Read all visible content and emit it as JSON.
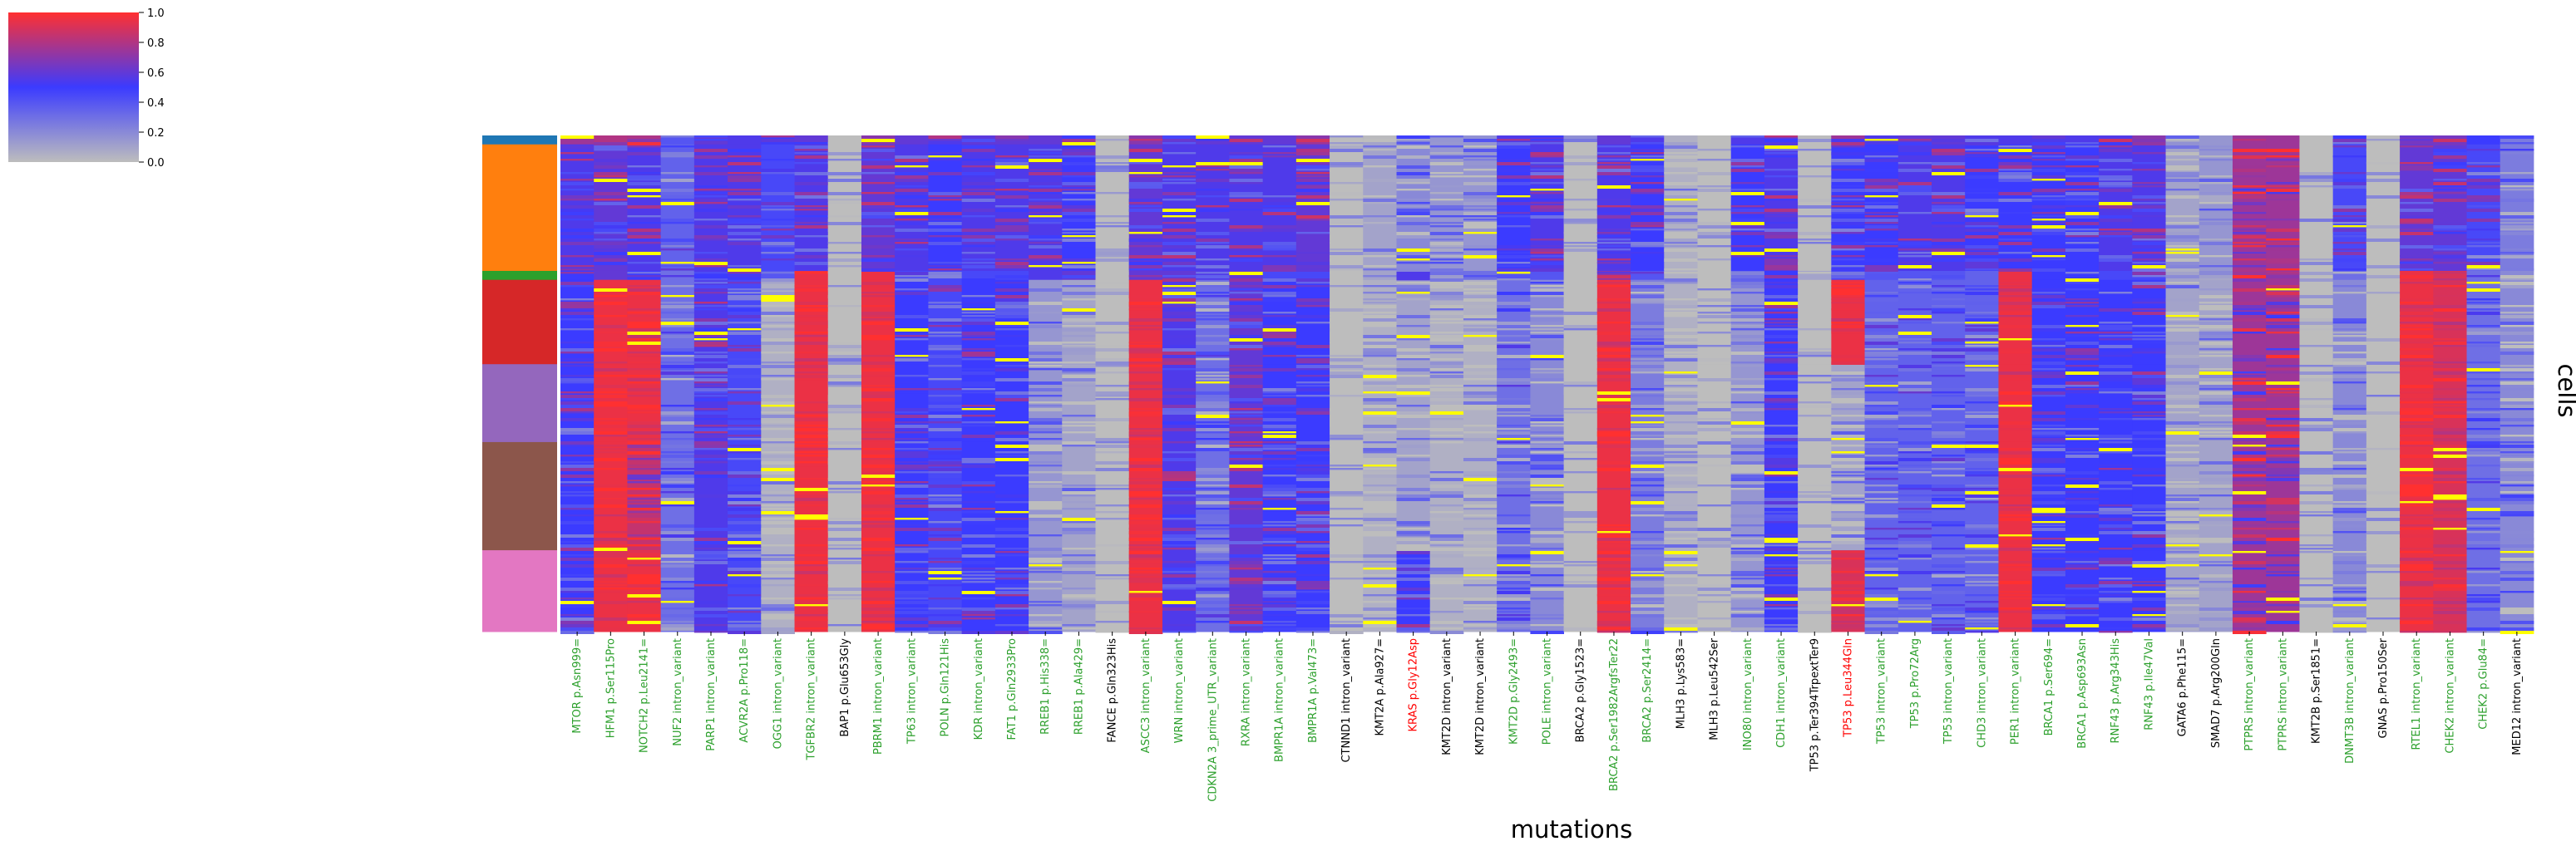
{
  "chart_data": {
    "type": "heatmap",
    "xlabel": "mutations",
    "ylabel": "cells",
    "colorbar": {
      "ticks": [
        "0.0",
        "0.2",
        "0.4",
        "0.6",
        "0.8",
        "1.0"
      ],
      "range": [
        0,
        1
      ],
      "colors": [
        "#bdbdbd",
        "#3b3bff",
        "#ff3030"
      ]
    },
    "special_value_color": "#ffff00",
    "row_groups": [
      {
        "color": "#1f77b4",
        "fraction": 0.018
      },
      {
        "color": "#ff7f0e",
        "fraction": 0.255
      },
      {
        "color": "#2ca02c",
        "fraction": 0.018
      },
      {
        "color": "#d62728",
        "fraction": 0.17
      },
      {
        "color": "#9467bd",
        "fraction": 0.157
      },
      {
        "color": "#8c564b",
        "fraction": 0.218
      },
      {
        "color": "#e377c2",
        "fraction": 0.164
      }
    ],
    "columns": [
      {
        "label": "MTOR p.Asn999=",
        "color": "#2ca02c",
        "profile": [
          0.75,
          0.55,
          0.5,
          0.5,
          0.5,
          0.5,
          0.5
        ]
      },
      {
        "label": "HFM1 p.Ser115Pro",
        "color": "#2ca02c",
        "profile": [
          0.8,
          0.6,
          0.6,
          0.95,
          0.95,
          0.95,
          0.95
        ]
      },
      {
        "label": "NOTCH2 p.Leu2141=",
        "color": "#2ca02c",
        "profile": [
          0.7,
          0.55,
          0.5,
          0.95,
          0.95,
          0.85,
          0.95
        ]
      },
      {
        "label": "NUF2 intron_variant",
        "color": "#2ca02c",
        "profile": [
          0.4,
          0.35,
          0.3,
          0.3,
          0.3,
          0.3,
          0.3
        ]
      },
      {
        "label": "PARP1 intron_variant",
        "color": "#2ca02c",
        "profile": [
          0.6,
          0.55,
          0.5,
          0.55,
          0.55,
          0.55,
          0.55
        ]
      },
      {
        "label": "ACVR2A p.Pro118=",
        "color": "#2ca02c",
        "profile": [
          0.55,
          0.55,
          0.5,
          0.45,
          0.45,
          0.45,
          0.45
        ]
      },
      {
        "label": "OGG1 intron_variant",
        "color": "#2ca02c",
        "profile": [
          0.5,
          0.45,
          0.4,
          0.05,
          0.05,
          0.05,
          0.05
        ]
      },
      {
        "label": "TGFBR2 intron_variant",
        "color": "#2ca02c",
        "profile": [
          0.6,
          0.55,
          0.95,
          0.95,
          0.95,
          0.95,
          0.95
        ]
      },
      {
        "label": "BAP1 p.Glu653Gly",
        "color": "#000000",
        "profile": [
          0.0,
          0.0,
          0.0,
          0.0,
          0.0,
          0.0,
          0.0
        ]
      },
      {
        "label": "PBRM1 intron_variant",
        "color": "#2ca02c",
        "profile": [
          0.7,
          0.6,
          0.95,
          0.95,
          0.95,
          0.95,
          0.95
        ]
      },
      {
        "label": "TP63 intron_variant",
        "color": "#2ca02c",
        "profile": [
          0.6,
          0.55,
          0.45,
          0.5,
          0.5,
          0.5,
          0.5
        ]
      },
      {
        "label": "POLN p.Gln121His",
        "color": "#2ca02c",
        "profile": [
          0.55,
          0.5,
          0.45,
          0.45,
          0.45,
          0.45,
          0.45
        ]
      },
      {
        "label": "KDR intron_variant",
        "color": "#2ca02c",
        "profile": [
          0.6,
          0.55,
          0.45,
          0.5,
          0.5,
          0.5,
          0.5
        ]
      },
      {
        "label": "FAT1 p.Gln2933Pro",
        "color": "#2ca02c",
        "profile": [
          0.6,
          0.55,
          0.45,
          0.5,
          0.5,
          0.5,
          0.5
        ]
      },
      {
        "label": "RREB1 p.His338=",
        "color": "#2ca02c",
        "profile": [
          0.6,
          0.55,
          0.55,
          0.15,
          0.15,
          0.15,
          0.15
        ]
      },
      {
        "label": "RREB1 p.Ala429=",
        "color": "#2ca02c",
        "profile": [
          0.55,
          0.5,
          0.6,
          0.1,
          0.1,
          0.1,
          0.1
        ]
      },
      {
        "label": "FANCE p.Gln323His",
        "color": "#000000",
        "profile": [
          0.0,
          0.0,
          0.0,
          0.0,
          0.0,
          0.0,
          0.0
        ]
      },
      {
        "label": "ASCC3 intron_variant",
        "color": "#2ca02c",
        "profile": [
          0.7,
          0.6,
          0.6,
          0.95,
          0.95,
          0.95,
          0.95
        ]
      },
      {
        "label": "WRN intron_variant",
        "color": "#2ca02c",
        "profile": [
          0.6,
          0.55,
          0.6,
          0.55,
          0.55,
          0.55,
          0.55
        ]
      },
      {
        "label": "CDKN2A 3_prime_UTR_variant",
        "color": "#2ca02c",
        "profile": [
          0.6,
          0.55,
          0.55,
          0.3,
          0.3,
          0.3,
          0.3
        ]
      },
      {
        "label": "RXRA intron_variant",
        "color": "#2ca02c",
        "profile": [
          0.6,
          0.55,
          0.6,
          0.6,
          0.6,
          0.6,
          0.6
        ]
      },
      {
        "label": "BMPR1A intron_variant",
        "color": "#2ca02c",
        "profile": [
          0.6,
          0.55,
          0.45,
          0.5,
          0.5,
          0.5,
          0.5
        ]
      },
      {
        "label": "BMPR1A p.Val473=",
        "color": "#2ca02c",
        "profile": [
          0.7,
          0.6,
          0.45,
          0.5,
          0.5,
          0.5,
          0.5
        ]
      },
      {
        "label": "CTNND1 intron_variant",
        "color": "#000000",
        "profile": [
          0.0,
          0.0,
          0.0,
          0.0,
          0.0,
          0.0,
          0.0
        ]
      },
      {
        "label": "KMT2A p.Ala927=",
        "color": "#000000",
        "profile": [
          0.1,
          0.1,
          0.1,
          0.05,
          0.05,
          0.05,
          0.05
        ]
      },
      {
        "label": "KRAS p.Gly12Asp",
        "color": "#ff0000",
        "profile": [
          0.25,
          0.2,
          0.55,
          0.1,
          0.1,
          0.1,
          0.5
        ]
      },
      {
        "label": "KMT2D intron_variant",
        "color": "#000000",
        "profile": [
          0.15,
          0.15,
          0.3,
          0.05,
          0.05,
          0.05,
          0.05
        ]
      },
      {
        "label": "KMT2D intron_variant",
        "color": "#000000",
        "profile": [
          0.15,
          0.15,
          0.3,
          0.05,
          0.05,
          0.05,
          0.05
        ]
      },
      {
        "label": "KMT2D p.Gly2493=",
        "color": "#2ca02c",
        "profile": [
          0.55,
          0.5,
          0.4,
          0.3,
          0.3,
          0.3,
          0.3
        ]
      },
      {
        "label": "POLE intron_variant",
        "color": "#2ca02c",
        "profile": [
          0.6,
          0.55,
          0.4,
          0.2,
          0.2,
          0.2,
          0.2
        ]
      },
      {
        "label": "BRCA2 p.Gly1523=",
        "color": "#000000",
        "profile": [
          0.0,
          0.0,
          0.0,
          0.0,
          0.0,
          0.0,
          0.0
        ]
      },
      {
        "label": "BRCA2 p.Ser1982ArgfsTer22",
        "color": "#2ca02c",
        "profile": [
          0.6,
          0.55,
          0.7,
          0.95,
          0.95,
          0.95,
          0.95
        ]
      },
      {
        "label": "BRCA2 p.Ser2414=",
        "color": "#2ca02c",
        "profile": [
          0.55,
          0.5,
          0.4,
          0.25,
          0.25,
          0.25,
          0.25
        ]
      },
      {
        "label": "MLH3 p.Lys583=",
        "color": "#000000",
        "profile": [
          0.05,
          0.05,
          0.05,
          0.05,
          0.05,
          0.05,
          0.05
        ]
      },
      {
        "label": "MLH3 p.Leu542Ser",
        "color": "#000000",
        "profile": [
          0.0,
          0.0,
          0.0,
          0.0,
          0.0,
          0.0,
          0.0
        ]
      },
      {
        "label": "INO80 intron_variant",
        "color": "#2ca02c",
        "profile": [
          0.55,
          0.5,
          0.3,
          0.15,
          0.15,
          0.15,
          0.15
        ]
      },
      {
        "label": "CDH1 intron_variant",
        "color": "#2ca02c",
        "profile": [
          0.6,
          0.55,
          0.5,
          0.5,
          0.5,
          0.5,
          0.5
        ]
      },
      {
        "label": "TP53 p.Ter394TrpextTer9",
        "color": "#000000",
        "profile": [
          0.0,
          0.0,
          0.1,
          0.0,
          0.0,
          0.0,
          0.0
        ]
      },
      {
        "label": "TP53 p.Leu344Gln",
        "color": "#ff0000",
        "profile": [
          0.55,
          0.5,
          0.45,
          0.95,
          0.1,
          0.1,
          0.9
        ]
      },
      {
        "label": "TP53 intron_variant",
        "color": "#2ca02c",
        "profile": [
          0.55,
          0.5,
          0.4,
          0.35,
          0.35,
          0.35,
          0.35
        ]
      },
      {
        "label": "TP53 p.Pro72Arg",
        "color": "#2ca02c",
        "profile": [
          0.6,
          0.55,
          0.4,
          0.35,
          0.35,
          0.35,
          0.35
        ]
      },
      {
        "label": "TP53 intron_variant",
        "color": "#2ca02c",
        "profile": [
          0.6,
          0.55,
          0.4,
          0.35,
          0.35,
          0.35,
          0.35
        ]
      },
      {
        "label": "CHD3 intron_variant",
        "color": "#2ca02c",
        "profile": [
          0.55,
          0.5,
          0.35,
          0.35,
          0.35,
          0.35,
          0.35
        ]
      },
      {
        "label": "PER1 intron_variant",
        "color": "#2ca02c",
        "profile": [
          0.55,
          0.5,
          0.95,
          0.95,
          0.95,
          0.95,
          0.95
        ]
      },
      {
        "label": "BRCA1 p.Ser694=",
        "color": "#2ca02c",
        "profile": [
          0.55,
          0.5,
          0.5,
          0.5,
          0.5,
          0.5,
          0.5
        ]
      },
      {
        "label": "BRCA1 p.Asp693Asn",
        "color": "#2ca02c",
        "profile": [
          0.55,
          0.5,
          0.5,
          0.5,
          0.5,
          0.5,
          0.5
        ]
      },
      {
        "label": "RNF43 p.Arg343His",
        "color": "#2ca02c",
        "profile": [
          0.6,
          0.55,
          0.45,
          0.5,
          0.5,
          0.5,
          0.5
        ]
      },
      {
        "label": "RNF43 p.Ile47Val",
        "color": "#2ca02c",
        "profile": [
          0.6,
          0.55,
          0.45,
          0.5,
          0.5,
          0.5,
          0.5
        ]
      },
      {
        "label": "GATA6 p.Phe115=",
        "color": "#000000",
        "profile": [
          0.1,
          0.1,
          0.1,
          0.1,
          0.1,
          0.1,
          0.1
        ]
      },
      {
        "label": "SMAD7 p.Arg200Gln",
        "color": "#000000",
        "profile": [
          0.15,
          0.15,
          0.2,
          0.1,
          0.1,
          0.1,
          0.1
        ]
      },
      {
        "label": "PTPRS intron_variant",
        "color": "#2ca02c",
        "profile": [
          0.75,
          0.75,
          0.75,
          0.75,
          0.75,
          0.75,
          0.75
        ]
      },
      {
        "label": "PTPRS intron_variant",
        "color": "#2ca02c",
        "profile": [
          0.75,
          0.75,
          0.75,
          0.75,
          0.75,
          0.75,
          0.75
        ]
      },
      {
        "label": "KMT2B p.Ser1851=",
        "color": "#000000",
        "profile": [
          0.0,
          0.0,
          0.0,
          0.0,
          0.0,
          0.0,
          0.0
        ]
      },
      {
        "label": "DNMT3B intron_variant",
        "color": "#2ca02c",
        "profile": [
          0.5,
          0.45,
          0.3,
          0.2,
          0.2,
          0.2,
          0.2
        ]
      },
      {
        "label": "GNAS p.Pro150Ser",
        "color": "#000000",
        "profile": [
          0.0,
          0.0,
          0.0,
          0.0,
          0.0,
          0.0,
          0.0
        ]
      },
      {
        "label": "RTEL1 intron_variant",
        "color": "#2ca02c",
        "profile": [
          0.65,
          0.6,
          0.95,
          0.95,
          0.95,
          0.95,
          0.95
        ]
      },
      {
        "label": "CHEK2 intron_variant",
        "color": "#2ca02c",
        "profile": [
          0.65,
          0.6,
          0.9,
          0.9,
          0.9,
          0.9,
          0.9
        ]
      },
      {
        "label": "CHEK2 p.Glu84=",
        "color": "#2ca02c",
        "profile": [
          0.5,
          0.45,
          0.3,
          0.3,
          0.3,
          0.3,
          0.3
        ]
      },
      {
        "label": "MED12 intron_variant",
        "color": "#000000",
        "profile": [
          0.25,
          0.25,
          0.2,
          0.2,
          0.2,
          0.2,
          0.2
        ]
      }
    ]
  }
}
